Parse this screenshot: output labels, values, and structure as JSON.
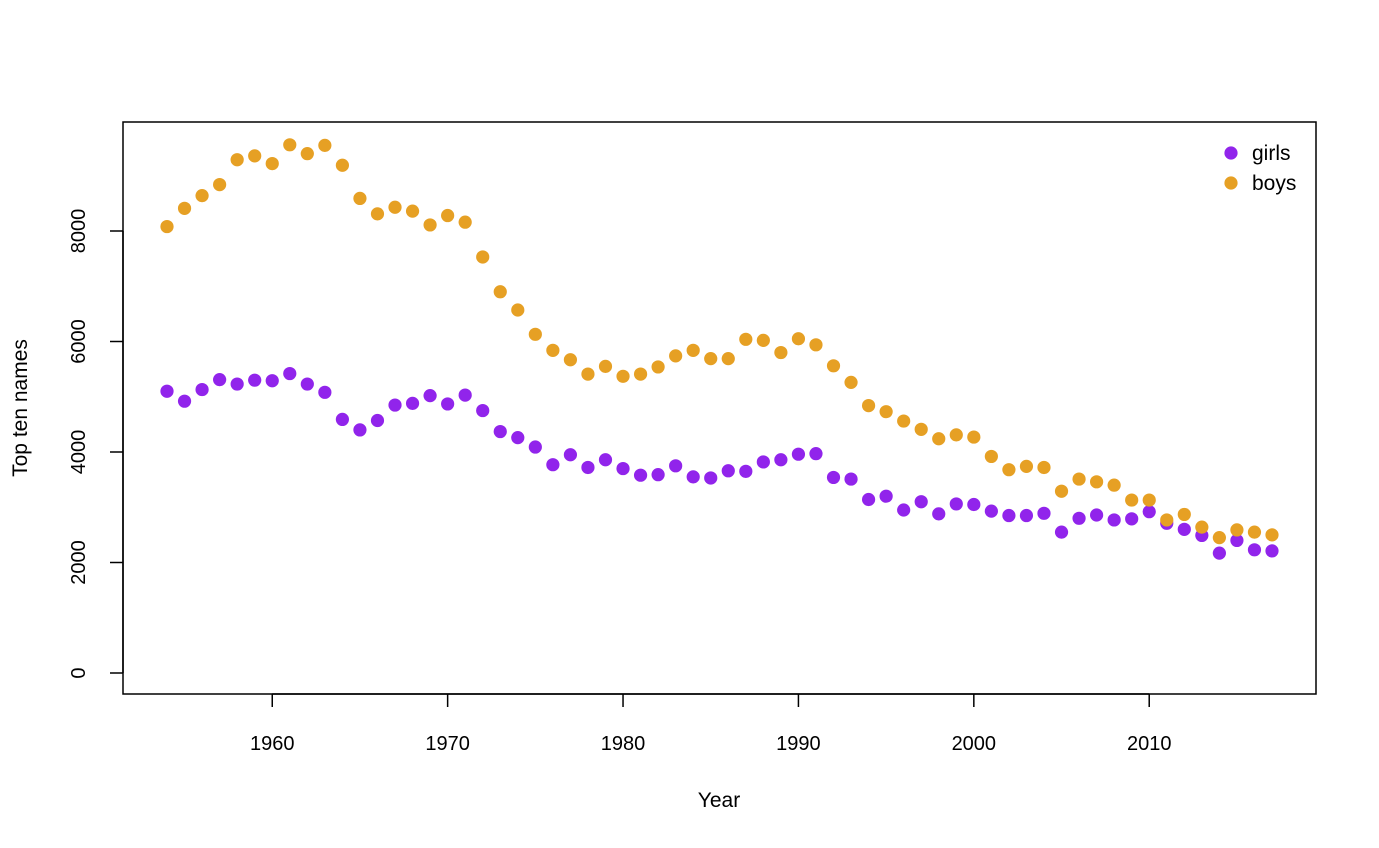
{
  "chart_data": {
    "type": "scatter",
    "title": "",
    "xlabel": "Year",
    "ylabel": "Top ten names",
    "xlim": [
      1954,
      2017
    ],
    "ylim": [
      0,
      9600
    ],
    "x_ticks": [
      1960,
      1970,
      1980,
      1990,
      2000,
      2010
    ],
    "y_ticks": [
      0,
      2000,
      4000,
      6000,
      8000
    ],
    "x_tick_labels": [
      "1960",
      "1970",
      "1980",
      "1990",
      "2000",
      "2010"
    ],
    "y_tick_labels": [
      "0",
      "2000",
      "4000",
      "6000",
      "8000"
    ],
    "grid": false,
    "legend_position": "top-right",
    "x": [
      1954,
      1955,
      1956,
      1957,
      1958,
      1959,
      1960,
      1961,
      1962,
      1963,
      1964,
      1965,
      1966,
      1967,
      1968,
      1969,
      1970,
      1971,
      1972,
      1973,
      1974,
      1975,
      1976,
      1977,
      1978,
      1979,
      1980,
      1981,
      1982,
      1983,
      1984,
      1985,
      1986,
      1987,
      1988,
      1989,
      1990,
      1991,
      1992,
      1993,
      1994,
      1995,
      1996,
      1997,
      1998,
      1999,
      2000,
      2001,
      2002,
      2003,
      2004,
      2005,
      2006,
      2007,
      2008,
      2009,
      2010,
      2011,
      2012,
      2013,
      2014,
      2015,
      2016,
      2017
    ],
    "series": [
      {
        "name": "girls",
        "color": "#9124EB",
        "values": [
          5100,
          4920,
          5130,
          5310,
          5230,
          5300,
          5290,
          5420,
          5230,
          5080,
          4590,
          4400,
          4570,
          4850,
          4880,
          5020,
          4870,
          5030,
          4750,
          4370,
          4260,
          4090,
          3770,
          3950,
          3720,
          3860,
          3700,
          3580,
          3590,
          3750,
          3550,
          3530,
          3660,
          3650,
          3820,
          3860,
          3960,
          3970,
          3540,
          3510,
          3140,
          3200,
          2950,
          3100,
          2880,
          3060,
          3050,
          2930,
          2850,
          2850,
          2890,
          2550,
          2800,
          2860,
          2770,
          2790,
          2920,
          2710,
          2600,
          2490,
          2170,
          2400,
          2230,
          2210
        ]
      },
      {
        "name": "boys",
        "color": "#E6A024",
        "values": [
          8080,
          8410,
          8640,
          8840,
          9290,
          9360,
          9220,
          9560,
          9400,
          9550,
          9190,
          8590,
          8310,
          8430,
          8360,
          8110,
          8280,
          8160,
          7530,
          6900,
          6570,
          6130,
          5840,
          5670,
          5410,
          5550,
          5370,
          5410,
          5540,
          5740,
          5840,
          5690,
          5690,
          6040,
          6020,
          5800,
          6050,
          5940,
          5560,
          5260,
          4840,
          4730,
          4560,
          4410,
          4240,
          4310,
          4270,
          3920,
          3680,
          3740,
          3720,
          3290,
          3510,
          3460,
          3400,
          3130,
          3130,
          2770,
          2870,
          2640,
          2450,
          2590,
          2550,
          2500
        ]
      }
    ]
  }
}
